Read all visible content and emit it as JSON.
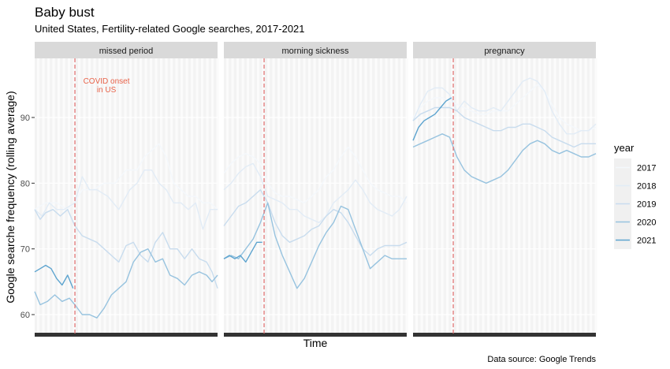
{
  "chart_data": {
    "type": "line",
    "title": "Baby bust",
    "subtitle": "United States, Fertility-related Google searches, 2017-2021",
    "xlabel": "Time",
    "ylabel": "Google searche frequency (rolling average)",
    "caption": "Data source: Google Trends",
    "ylim": [
      57,
      99
    ],
    "yticks": [
      60,
      70,
      80,
      90
    ],
    "legend": {
      "title": "year",
      "position": "right"
    },
    "annotation": {
      "lines": [
        "COVID onset",
        "in US"
      ],
      "color": "#e8634a",
      "panel": "missed period"
    },
    "covid_x": 0.22,
    "x_note": "x is the fraction of each panel's time span (0 = start, 1 = end); no x ticks are printed",
    "colors": {
      "2017": "#f4f8fc",
      "2018": "#e2ecf6",
      "2019": "#c8dcee",
      "2020": "#97c3df",
      "2021": "#5da4cf",
      "covid_line": "#e06c6c"
    },
    "panels": [
      {
        "name": "missed period",
        "series": [
          {
            "name": "2017",
            "x": [
              0.0,
              0.06,
              0.12,
              0.18,
              0.22,
              0.26,
              0.32,
              0.38,
              0.44,
              0.5,
              0.56,
              0.6,
              0.64,
              0.68,
              0.72,
              0.76,
              0.8,
              0.84,
              0.88,
              0.92,
              0.96,
              1.0
            ],
            "y": [
              76,
              77,
              77,
              76,
              77,
              79,
              79,
              80,
              80,
              82,
              82,
              84,
              85,
              86,
              84,
              80,
              79,
              78,
              78,
              77,
              77,
              76
            ]
          },
          {
            "name": "2018",
            "x": [
              0.0,
              0.04,
              0.08,
              0.12,
              0.16,
              0.22,
              0.26,
              0.3,
              0.34,
              0.4,
              0.46,
              0.52,
              0.56,
              0.6,
              0.64,
              0.68,
              0.72,
              0.76,
              0.8,
              0.84,
              0.88,
              0.92,
              0.96,
              1.0
            ],
            "y": [
              76,
              75,
              77,
              76,
              76,
              77,
              81,
              79,
              79,
              78,
              76,
              79,
              80,
              82,
              82,
              80,
              79,
              77,
              77,
              76,
              77,
              73,
              76,
              76
            ]
          },
          {
            "name": "2019",
            "x": [
              0.0,
              0.03,
              0.06,
              0.1,
              0.14,
              0.18,
              0.22,
              0.26,
              0.3,
              0.34,
              0.38,
              0.42,
              0.46,
              0.5,
              0.54,
              0.58,
              0.62,
              0.66,
              0.7,
              0.74,
              0.78,
              0.82,
              0.86,
              0.9,
              0.94,
              0.97,
              1.0
            ],
            "y": [
              76,
              74.5,
              75.5,
              76,
              75,
              76,
              73.5,
              72,
              71.5,
              71,
              70,
              69,
              68,
              70.5,
              71,
              69,
              68,
              71,
              72.5,
              70,
              70,
              68.5,
              70,
              68.5,
              68,
              66.5,
              64
            ]
          },
          {
            "name": "2020",
            "x": [
              0.0,
              0.03,
              0.07,
              0.11,
              0.15,
              0.19,
              0.22,
              0.26,
              0.3,
              0.34,
              0.38,
              0.42,
              0.46,
              0.5,
              0.54,
              0.58,
              0.62,
              0.66,
              0.7,
              0.74,
              0.78,
              0.82,
              0.86,
              0.9,
              0.94,
              0.97,
              1.0
            ],
            "y": [
              63.5,
              61.5,
              62,
              63,
              62,
              62.5,
              61.5,
              60,
              60,
              59.5,
              61,
              63,
              64,
              65,
              68,
              69.5,
              70,
              68,
              68.5,
              66,
              65.5,
              64.5,
              66,
              66.5,
              66,
              65,
              66
            ]
          },
          {
            "name": "2021",
            "x": [
              0.0,
              0.03,
              0.06,
              0.09,
              0.12,
              0.15,
              0.18,
              0.21
            ],
            "y": [
              66.5,
              67,
              67.5,
              67,
              65.5,
              64.5,
              66,
              64
            ]
          }
        ]
      },
      {
        "name": "morning sickness",
        "series": [
          {
            "name": "2017",
            "x": [
              0.0,
              0.04,
              0.08,
              0.12,
              0.16,
              0.2,
              0.24,
              0.28,
              0.32,
              0.36,
              0.4,
              0.44,
              0.48,
              0.52,
              0.56,
              0.6,
              0.64,
              0.68,
              0.72,
              0.76,
              0.8,
              0.84,
              0.88,
              0.92,
              0.96,
              1.0
            ],
            "y": [
              81.5,
              83,
              84,
              84.5,
              84,
              83,
              80,
              78.5,
              78,
              78,
              77.5,
              77,
              78,
              79,
              81,
              82,
              84,
              85.5,
              84,
              82,
              80,
              79,
              78.5,
              78,
              78,
              77
            ]
          },
          {
            "name": "2018",
            "x": [
              0.0,
              0.04,
              0.08,
              0.12,
              0.16,
              0.2,
              0.24,
              0.28,
              0.32,
              0.36,
              0.4,
              0.44,
              0.48,
              0.52,
              0.56,
              0.6,
              0.64,
              0.68,
              0.72,
              0.76,
              0.8,
              0.84,
              0.88,
              0.92,
              0.96,
              1.0
            ],
            "y": [
              79,
              80,
              81.5,
              82.5,
              83,
              81,
              78,
              77.5,
              77,
              76,
              76,
              75,
              74.5,
              74,
              75,
              77,
              78,
              79,
              80.5,
              79,
              77,
              76,
              75.5,
              75,
              76,
              78
            ]
          },
          {
            "name": "2019",
            "x": [
              0.0,
              0.04,
              0.08,
              0.12,
              0.16,
              0.2,
              0.24,
              0.28,
              0.32,
              0.36,
              0.4,
              0.44,
              0.48,
              0.52,
              0.56,
              0.6,
              0.64,
              0.68,
              0.72,
              0.76,
              0.8,
              0.84,
              0.88,
              0.92,
              0.96,
              1.0
            ],
            "y": [
              73.5,
              75,
              76.5,
              77,
              78,
              79,
              77,
              74,
              72,
              71,
              71.5,
              72,
              73,
              73.5,
              75,
              76,
              75.5,
              74,
              72,
              70,
              69,
              70,
              70.5,
              70.5,
              70.5,
              71
            ]
          },
          {
            "name": "2020",
            "x": [
              0.0,
              0.04,
              0.08,
              0.12,
              0.16,
              0.2,
              0.24,
              0.28,
              0.32,
              0.36,
              0.4,
              0.44,
              0.48,
              0.52,
              0.56,
              0.6,
              0.64,
              0.68,
              0.72,
              0.76,
              0.8,
              0.84,
              0.88,
              0.92,
              0.96,
              1.0
            ],
            "y": [
              68.5,
              69,
              68.5,
              70,
              71.5,
              74,
              77,
              72,
              69,
              66.5,
              64,
              65.5,
              68,
              70.5,
              72.5,
              74,
              76.5,
              76,
              73,
              70,
              67,
              68,
              69,
              68.5,
              68.5,
              68.5
            ]
          },
          {
            "name": "2021",
            "x": [
              0.0,
              0.03,
              0.06,
              0.09,
              0.12,
              0.15,
              0.18,
              0.21
            ],
            "y": [
              68.5,
              69,
              68.5,
              69,
              68,
              69.5,
              71,
              71
            ]
          }
        ]
      },
      {
        "name": "pregnancy",
        "series": [
          {
            "name": "2017",
            "x": [
              0.0,
              0.04,
              0.08,
              0.12,
              0.16,
              0.2,
              0.24,
              0.28,
              0.32,
              0.36,
              0.4,
              0.44,
              0.48,
              0.52,
              0.56,
              0.6,
              0.64,
              0.68,
              0.72,
              0.76,
              0.8,
              0.84,
              0.88,
              0.92,
              0.96,
              1.0
            ],
            "y": [
              90,
              91.5,
              92.5,
              93,
              93,
              92.5,
              92,
              91.5,
              91,
              90.5,
              90.5,
              91,
              91,
              91,
              92,
              93,
              94,
              95,
              94,
              92,
              90,
              89,
              88.5,
              88,
              88,
              88.5
            ]
          },
          {
            "name": "2018",
            "x": [
              0.0,
              0.04,
              0.08,
              0.12,
              0.16,
              0.2,
              0.24,
              0.28,
              0.32,
              0.36,
              0.4,
              0.44,
              0.48,
              0.52,
              0.56,
              0.6,
              0.64,
              0.68,
              0.72,
              0.76,
              0.8,
              0.84,
              0.88,
              0.92,
              0.96,
              1.0
            ],
            "y": [
              89.5,
              92,
              94,
              94.5,
              94.5,
              93.5,
              91,
              92.5,
              91.5,
              91,
              91,
              91.5,
              91,
              92.5,
              94,
              95.5,
              96,
              95.5,
              94,
              91,
              89,
              87.5,
              87.5,
              88,
              88,
              89
            ]
          },
          {
            "name": "2019",
            "x": [
              0.0,
              0.04,
              0.08,
              0.12,
              0.16,
              0.2,
              0.24,
              0.28,
              0.32,
              0.36,
              0.4,
              0.44,
              0.48,
              0.52,
              0.56,
              0.6,
              0.64,
              0.68,
              0.72,
              0.76,
              0.8,
              0.84,
              0.88,
              0.92,
              0.96,
              1.0
            ],
            "y": [
              89.5,
              90.5,
              91,
              91.5,
              91.5,
              91.5,
              91,
              90,
              89.5,
              89,
              88.5,
              88,
              88,
              88.5,
              88.5,
              89,
              89,
              88.5,
              88,
              87,
              86.5,
              86,
              85.5,
              86,
              86,
              86
            ]
          },
          {
            "name": "2020",
            "x": [
              0.0,
              0.04,
              0.08,
              0.12,
              0.16,
              0.2,
              0.24,
              0.28,
              0.32,
              0.36,
              0.4,
              0.44,
              0.48,
              0.52,
              0.56,
              0.6,
              0.64,
              0.68,
              0.72,
              0.76,
              0.8,
              0.84,
              0.88,
              0.92,
              0.96,
              1.0
            ],
            "y": [
              85.5,
              86,
              86.5,
              87,
              87.5,
              87,
              84,
              82,
              81,
              80.5,
              80,
              80.5,
              81,
              82,
              83.5,
              85,
              86,
              86.5,
              86,
              85,
              84.5,
              85,
              84.5,
              84,
              84,
              84.5
            ]
          },
          {
            "name": "2021",
            "x": [
              0.0,
              0.03,
              0.06,
              0.09,
              0.12,
              0.15,
              0.18,
              0.21
            ],
            "y": [
              86.5,
              88.5,
              89.5,
              90,
              90.5,
              91.5,
              92.5,
              93
            ]
          }
        ]
      }
    ]
  }
}
